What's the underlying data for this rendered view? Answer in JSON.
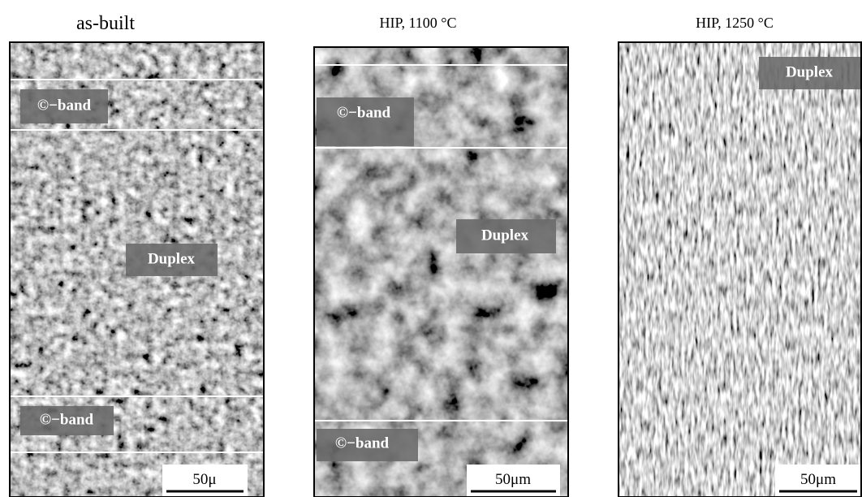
{
  "panels": [
    {
      "title": "as-built",
      "labels": [
        "©−band",
        "Duplex",
        "©−band"
      ],
      "scale_bar": "50μ"
    },
    {
      "title": "HIP, 1100 °C",
      "labels": [
        "©−band",
        "Duplex",
        "©−band"
      ],
      "scale_bar": "50μm"
    },
    {
      "title": "HIP, 1250 °C",
      "labels": [
        "Duplex"
      ],
      "scale_bar": "50μm"
    }
  ]
}
